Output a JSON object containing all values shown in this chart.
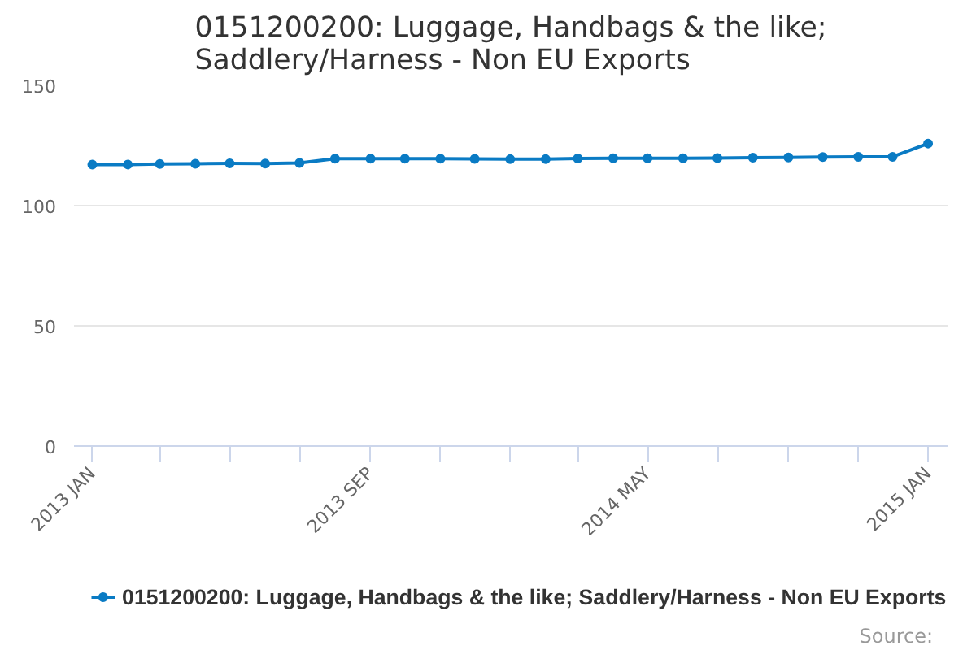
{
  "chart_data": {
    "type": "line",
    "title": "0151200200: Luggage, Handbags & the like;\nSaddlery/Harness - Non EU Exports",
    "x": [
      "2013-01",
      "2013-02",
      "2013-03",
      "2013-04",
      "2013-05",
      "2013-06",
      "2013-07",
      "2013-08",
      "2013-09",
      "2013-10",
      "2013-11",
      "2013-12",
      "2014-01",
      "2014-02",
      "2014-03",
      "2014-04",
      "2014-05",
      "2014-06",
      "2014-07",
      "2014-08",
      "2014-09",
      "2014-10",
      "2014-11",
      "2014-12",
      "2015-01"
    ],
    "series": [
      {
        "name": "0151200200: Luggage, Handbags & the like; Saddlery/Harness - Non EU Exports",
        "color": "#0a7bc4",
        "values": [
          117.1,
          117.1,
          117.3,
          117.4,
          117.6,
          117.5,
          117.7,
          119.5,
          119.5,
          119.5,
          119.5,
          119.4,
          119.3,
          119.3,
          119.6,
          119.7,
          119.7,
          119.7,
          119.8,
          119.9,
          120.0,
          120.2,
          120.3,
          120.3,
          125.8
        ]
      }
    ],
    "xlim": [
      "2012-12-16",
      "2015-01-18"
    ],
    "xticks": [
      {
        "value": "2013-01",
        "label": "2013 JAN"
      },
      {
        "value": "2013-03",
        "label": null
      },
      {
        "value": "2013-05",
        "label": null
      },
      {
        "value": "2013-07",
        "label": null
      },
      {
        "value": "2013-09",
        "label": "2013 SEP"
      },
      {
        "value": "2013-11",
        "label": null
      },
      {
        "value": "2014-01",
        "label": null
      },
      {
        "value": "2014-03",
        "label": null
      },
      {
        "value": "2014-05",
        "label": "2014 MAY"
      },
      {
        "value": "2014-07",
        "label": null
      },
      {
        "value": "2014-09",
        "label": null
      },
      {
        "value": "2014-11",
        "label": null
      },
      {
        "value": "2015-01",
        "label": "2015 JAN"
      }
    ],
    "ylim": [
      0,
      150
    ],
    "yticks": [
      0,
      50,
      100,
      150
    ],
    "grid": "y",
    "legend": "bottom",
    "marker": "circle",
    "line_style": "solid",
    "annotations": [
      "Source:"
    ]
  }
}
